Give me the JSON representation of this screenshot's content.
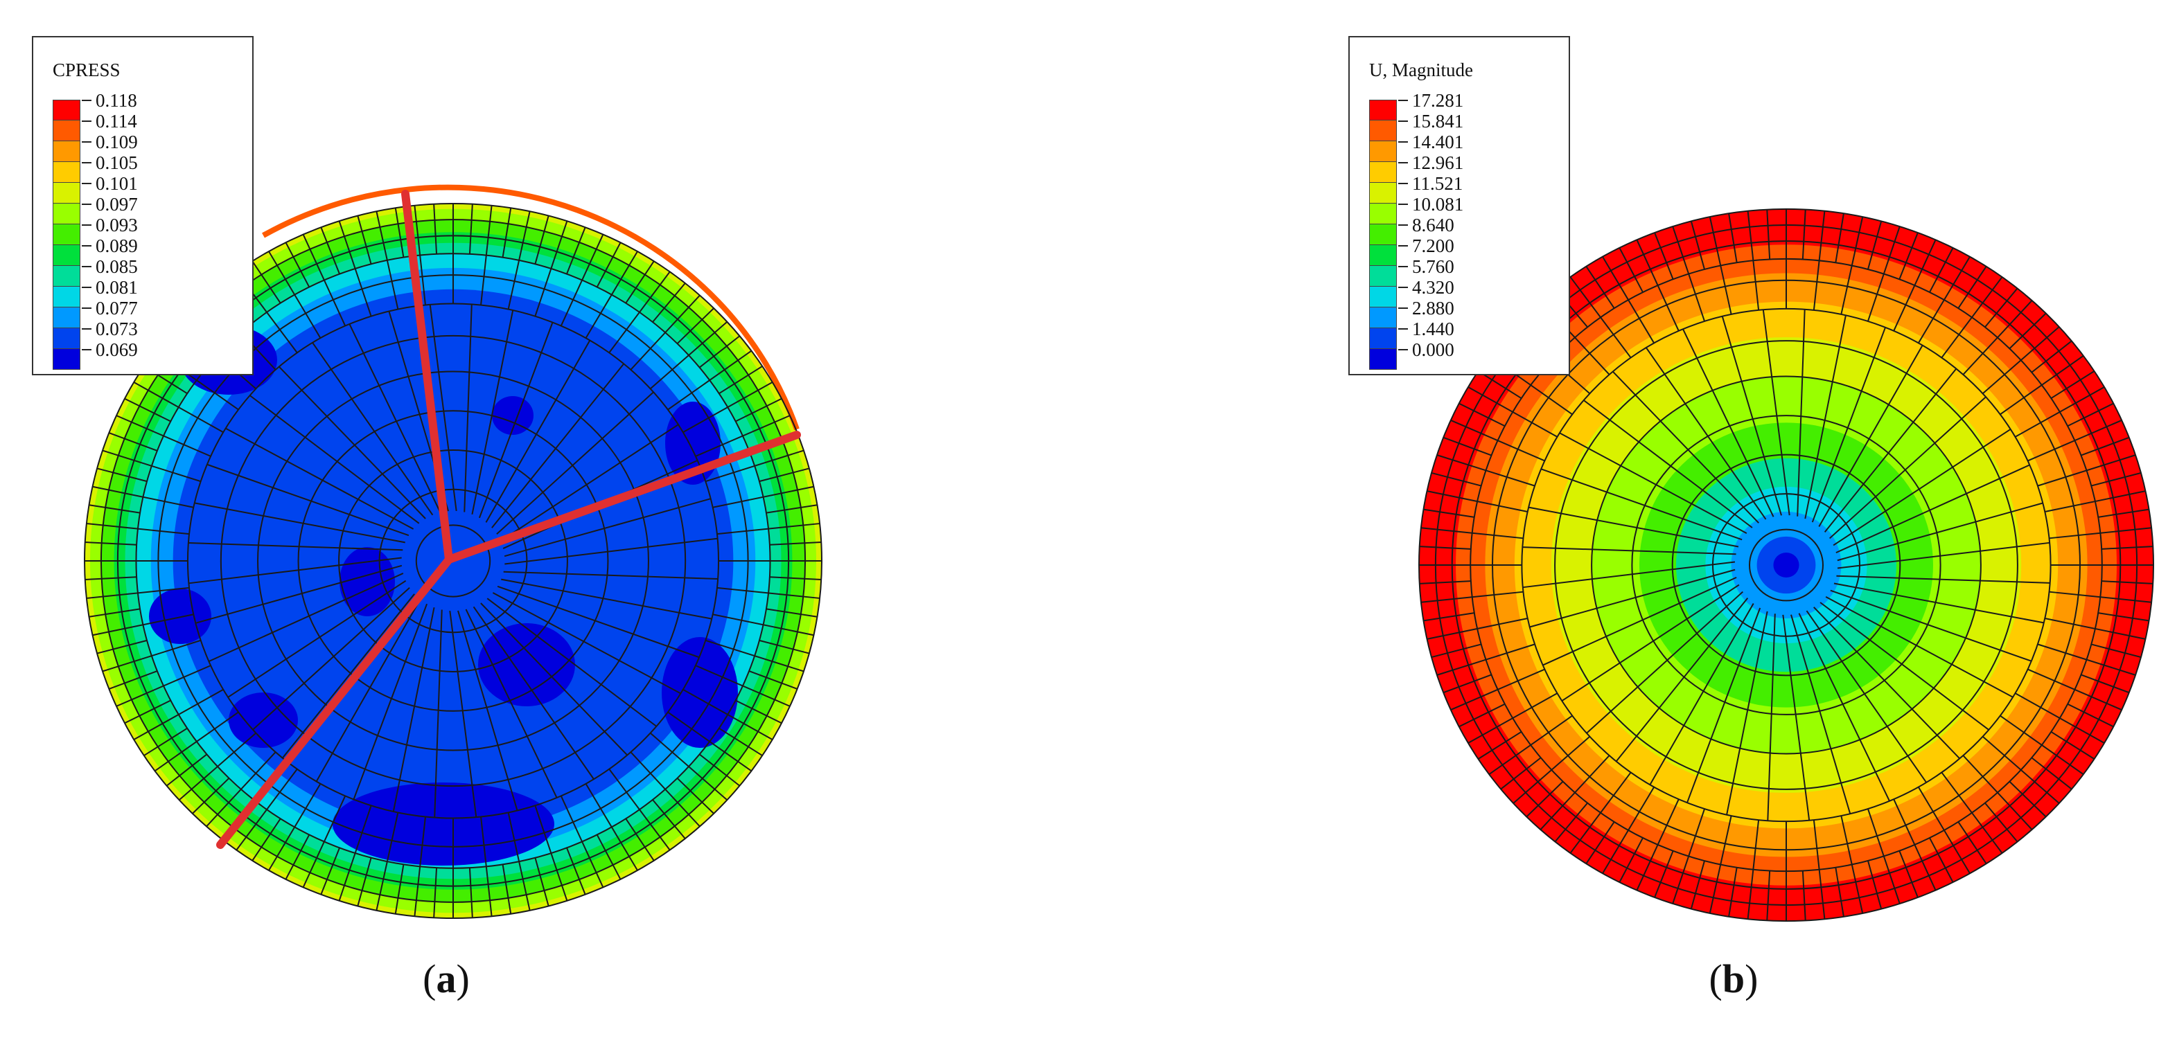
{
  "panels": [
    {
      "caption_open": "(",
      "caption_letter": "a",
      "caption_close": ")",
      "legend_title": "CPRESS",
      "legend_labels": [
        "0.118",
        "0.114",
        "0.109",
        "0.105",
        "0.101",
        "0.097",
        "0.093",
        "0.089",
        "0.085",
        "0.081",
        "0.077",
        "0.073",
        "0.069"
      ],
      "legend_colors": [
        "#ff0000",
        "#ff5a00",
        "#ff9900",
        "#ffcc00",
        "#d9f200",
        "#99ff00",
        "#44ee00",
        "#00e03c",
        "#00dd99",
        "#00d7e6",
        "#0099ff",
        "#0044ee",
        "#0000dd"
      ],
      "contour": "pressure",
      "overlay_color": "#e03030"
    },
    {
      "caption_open": "(",
      "caption_letter": "b",
      "caption_close": ")",
      "legend_title": "U, Magnitude",
      "legend_labels": [
        "17.281",
        "15.841",
        "14.401",
        "12.961",
        "11.521",
        "10.081",
        "8.640",
        "7.200",
        "5.760",
        "4.320",
        "2.880",
        "1.440",
        "0.000"
      ],
      "legend_colors": [
        "#ff0000",
        "#ff5a00",
        "#ff9900",
        "#ffcc00",
        "#d9f200",
        "#99ff00",
        "#44ee00",
        "#00e03c",
        "#00dd99",
        "#00d7e6",
        "#0099ff",
        "#0044ee",
        "#0000dd"
      ],
      "contour": "displacement"
    }
  ],
  "mesh_color": "#1a1a1a"
}
